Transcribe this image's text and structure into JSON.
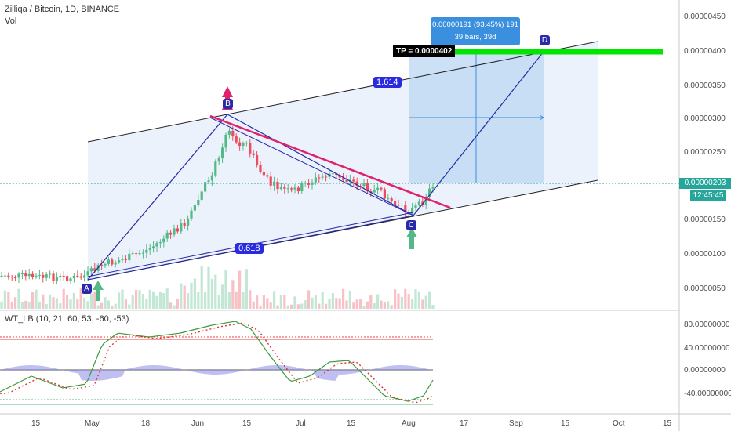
{
  "header": {
    "symbol_title": "Zilliqa / Bitcoin, 1D, BINANCE",
    "volume_label": "Vol",
    "indicator_label": "WT_LB (10, 21, 60, 53, -60, -53)"
  },
  "price_axis": {
    "labels": [
      "0.00000450",
      "0.00000400",
      "0.00000350",
      "0.00000300",
      "0.00000250",
      "0.00000200",
      "0.00000150",
      "0.00000100",
      "0.00000050"
    ],
    "current_price": "0.00000203",
    "countdown": "12:45:45"
  },
  "oscillator_axis": {
    "labels": [
      "80.00000000",
      "40.00000000",
      "0.00000000",
      "-40.00000000"
    ]
  },
  "time_axis": {
    "labels": [
      "15",
      "May",
      "18",
      "Jun",
      "15",
      "Jul",
      "15",
      "Aug",
      "17",
      "Sep",
      "15",
      "Oct",
      "15"
    ]
  },
  "annotations": {
    "measure_callout_line1": "0.00000191 (93.45%) 191",
    "measure_callout_line2": "39 bars, 39d",
    "tp_label": "TP = 0.0000402",
    "fib_upper": "1.614",
    "fib_lower": "0.618",
    "point_a": "A",
    "point_b": "B",
    "point_c": "C",
    "point_d": "D"
  },
  "colors": {
    "up_candle": "#53b987",
    "down_candle": "#eb4d5c",
    "channel_fill": "#dbe8f8",
    "measure_fill": "#bcd7f3",
    "target_line": "#00e600",
    "trend_line": "#e0226b",
    "pattern_line": "#2a2aa8",
    "price_badge": "#26a69a"
  }
}
